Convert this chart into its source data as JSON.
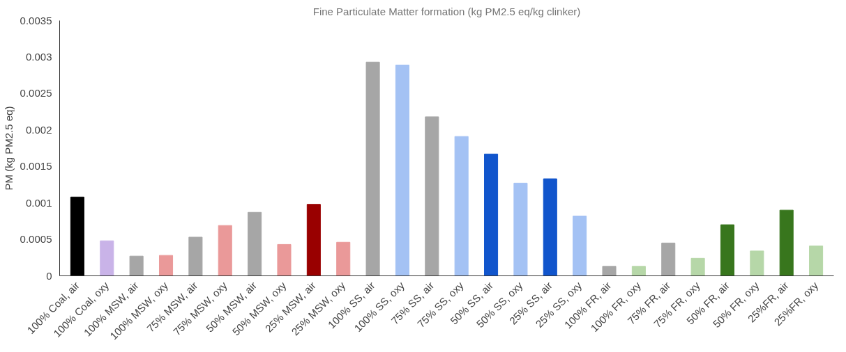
{
  "chart_data": {
    "type": "bar",
    "title": "Fine Particulate Matter formation (kg PM2.5 eq/kg clinker)",
    "ylabel": "PM (kg PM2.5 eq)",
    "categories": [
      "100% Coal, air",
      "100% Coal, oxy",
      "100% MSW, air",
      "100% MSW, oxy",
      "75% MSW, air",
      "75% MSW, oxy",
      "50% MSW, air",
      "50% MSW, oxy",
      "25% MSW, air",
      "25% MSW, oxy",
      "100% SS, air",
      "100% SS, oxy",
      "75% SS, air",
      "75% SS, oxy",
      "50% SS, air",
      "50% SS, oxy",
      "25% SS, air",
      "25% SS, oxy",
      "100% FR, air",
      "100% FR, oxy",
      "75% FR, air",
      "75% FR, oxy",
      "50% FR, air",
      "50% FR, oxy",
      "25%FR, air",
      "25%FR, oxy"
    ],
    "values": [
      0.00108,
      0.00048,
      0.00027,
      0.00028,
      0.00053,
      0.00069,
      0.00087,
      0.00043,
      0.00098,
      0.00046,
      0.00293,
      0.00289,
      0.00218,
      0.00191,
      0.00167,
      0.00127,
      0.00133,
      0.00082,
      0.00013,
      0.00013,
      0.00045,
      0.00024,
      0.0007,
      0.00034,
      0.0009,
      0.00041
    ],
    "colors": [
      "#000000",
      "#c9b3e8",
      "#a6a6a6",
      "#ea9999",
      "#a6a6a6",
      "#ea9999",
      "#a6a6a6",
      "#ea9999",
      "#990000",
      "#ea9999",
      "#a6a6a6",
      "#a4c2f4",
      "#a6a6a6",
      "#a4c2f4",
      "#1155cc",
      "#a4c2f4",
      "#1155cc",
      "#a4c2f4",
      "#a6a6a6",
      "#b6d7a8",
      "#a6a6a6",
      "#b6d7a8",
      "#38761d",
      "#b6d7a8",
      "#38761d",
      "#b6d7a8"
    ],
    "ylim": [
      0,
      0.0035
    ],
    "yticks": [
      0,
      0.0005,
      0.001,
      0.0015,
      0.002,
      0.0025,
      0.003,
      0.0035
    ],
    "grid": false
  }
}
